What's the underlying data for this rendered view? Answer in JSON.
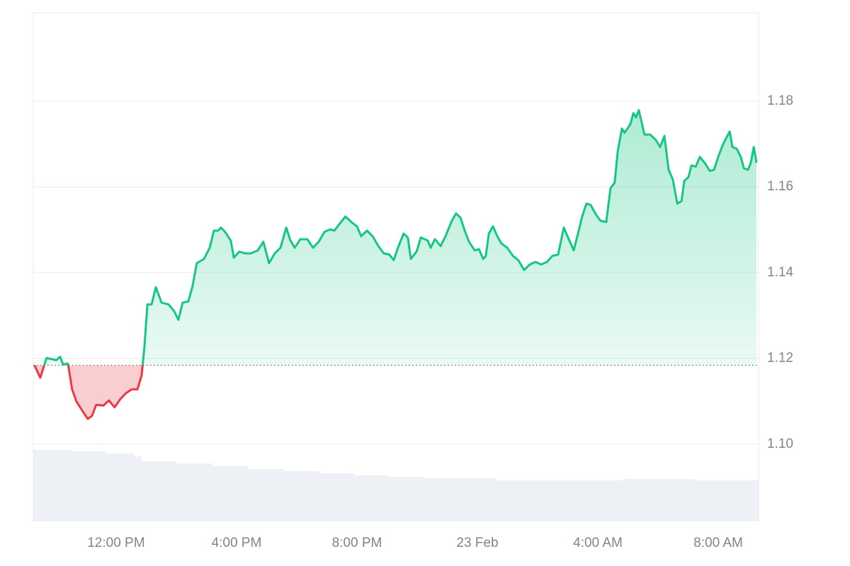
{
  "chart_data": {
    "type": "line",
    "x": [
      9.29,
      9.48,
      9.69,
      10.02,
      10.14,
      10.24,
      10.4,
      10.54,
      10.68,
      10.87,
      11.06,
      11.2,
      11.34,
      11.58,
      11.76,
      11.95,
      12.14,
      12.33,
      12.52,
      12.71,
      12.85,
      12.94,
      13.04,
      13.18,
      13.32,
      13.51,
      13.74,
      13.93,
      14.07,
      14.21,
      14.4,
      14.54,
      14.68,
      14.92,
      15.11,
      15.25,
      15.39,
      15.48,
      15.62,
      15.81,
      15.91,
      16.09,
      16.28,
      16.47,
      16.71,
      16.89,
      17.08,
      17.27,
      17.46,
      17.65,
      17.79,
      17.93,
      18.12,
      18.35,
      18.54,
      18.73,
      18.92,
      19.11,
      19.25,
      19.39,
      19.62,
      19.81,
      20.0,
      20.14,
      20.33,
      20.52,
      20.71,
      20.89,
      21.08,
      21.22,
      21.36,
      21.55,
      21.69,
      21.79,
      21.98,
      22.12,
      22.35,
      22.45,
      22.59,
      22.78,
      22.96,
      23.15,
      23.29,
      23.44,
      23.58,
      23.72,
      23.91,
      24.05,
      24.19,
      24.28,
      24.38,
      24.52,
      24.66,
      24.8,
      24.99,
      25.18,
      25.36,
      25.55,
      25.74,
      25.93,
      26.12,
      26.31,
      26.49,
      26.68,
      26.87,
      27.01,
      27.2,
      27.34,
      27.48,
      27.62,
      27.76,
      27.95,
      28.09,
      28.28,
      28.42,
      28.56,
      28.66,
      28.8,
      28.89,
      29.08,
      29.18,
      29.27,
      29.36,
      29.55,
      29.74,
      29.93,
      30.07,
      30.21,
      30.35,
      30.49,
      30.64,
      30.78,
      30.87,
      31.01,
      31.11,
      31.25,
      31.39,
      31.58,
      31.72,
      31.86,
      32.0,
      32.14,
      32.28,
      32.38,
      32.47,
      32.61,
      32.75,
      32.85,
      32.99,
      33.08,
      33.18,
      33.27
    ],
    "values": [
      1.1184,
      1.1155,
      1.1201,
      1.1196,
      1.1204,
      1.1186,
      1.1188,
      1.1128,
      1.11,
      1.1079,
      1.1059,
      1.1066,
      1.1092,
      1.109,
      1.1102,
      1.1086,
      1.1105,
      1.1119,
      1.1128,
      1.1128,
      1.1161,
      1.1227,
      1.1326,
      1.1326,
      1.1366,
      1.133,
      1.1326,
      1.131,
      1.129,
      1.133,
      1.1333,
      1.1369,
      1.1422,
      1.1432,
      1.1458,
      1.1498,
      1.1498,
      1.1505,
      1.1495,
      1.1475,
      1.1435,
      1.1449,
      1.1445,
      1.1445,
      1.1452,
      1.1472,
      1.1422,
      1.1445,
      1.1458,
      1.1505,
      1.1475,
      1.1458,
      1.1478,
      1.1478,
      1.1458,
      1.1472,
      1.1495,
      1.1501,
      1.1498,
      1.1511,
      1.1531,
      1.1518,
      1.1508,
      1.1485,
      1.1498,
      1.1485,
      1.1462,
      1.1445,
      1.1442,
      1.1429,
      1.1458,
      1.1491,
      1.1482,
      1.1432,
      1.1449,
      1.1482,
      1.1475,
      1.1458,
      1.1478,
      1.1462,
      1.1488,
      1.1521,
      1.1538,
      1.1528,
      1.1498,
      1.1472,
      1.1452,
      1.1455,
      1.1432,
      1.1439,
      1.1491,
      1.1508,
      1.1485,
      1.1468,
      1.1458,
      1.1439,
      1.1429,
      1.1406,
      1.1419,
      1.1425,
      1.1419,
      1.1425,
      1.1439,
      1.1442,
      1.1505,
      1.1482,
      1.1452,
      1.1491,
      1.1531,
      1.1561,
      1.1558,
      1.1534,
      1.1521,
      1.1518,
      1.1597,
      1.161,
      1.1683,
      1.1736,
      1.1726,
      1.1746,
      1.1772,
      1.1762,
      1.1779,
      1.1722,
      1.1722,
      1.1709,
      1.1693,
      1.1719,
      1.164,
      1.1617,
      1.1561,
      1.1567,
      1.1614,
      1.1623,
      1.165,
      1.1647,
      1.167,
      1.1653,
      1.1637,
      1.164,
      1.167,
      1.1696,
      1.1716,
      1.1729,
      1.1693,
      1.1689,
      1.167,
      1.1643,
      1.164,
      1.1656,
      1.1693,
      1.1656
    ],
    "up_color": "#16c784",
    "down_color": "#ea3943",
    "xlim": [
      9.25,
      33.34
    ],
    "xticks": [
      {
        "value": 12,
        "label": "12:00 PM"
      },
      {
        "value": 16,
        "label": "4:00 PM"
      },
      {
        "value": 20,
        "label": "8:00 PM"
      },
      {
        "value": 24,
        "label": "23 Feb"
      },
      {
        "value": 28,
        "label": "4:00 AM"
      },
      {
        "value": 32,
        "label": "8:00 AM"
      }
    ],
    "ylim": [
      1.082,
      1.2006
    ],
    "yticks": [
      {
        "value": 1.1,
        "label": "1.10"
      },
      1.12,
      1.14,
      1.16,
      1.18
    ],
    "grid": true,
    "volume": {
      "bins": [
        9.25,
        10.49,
        11.67,
        12.61,
        12.85,
        14.02,
        15.2,
        16.38,
        17.55,
        18.73,
        19.91,
        21.08,
        22.26,
        24.61,
        28.85,
        31.2,
        33.34
      ],
      "values": [
        101,
        99,
        96,
        92,
        85,
        82,
        78,
        74,
        71,
        68,
        65,
        63,
        61,
        58,
        60,
        58
      ],
      "y2lim": [
        0,
        719
      ],
      "color": "#edf0f4"
    }
  }
}
